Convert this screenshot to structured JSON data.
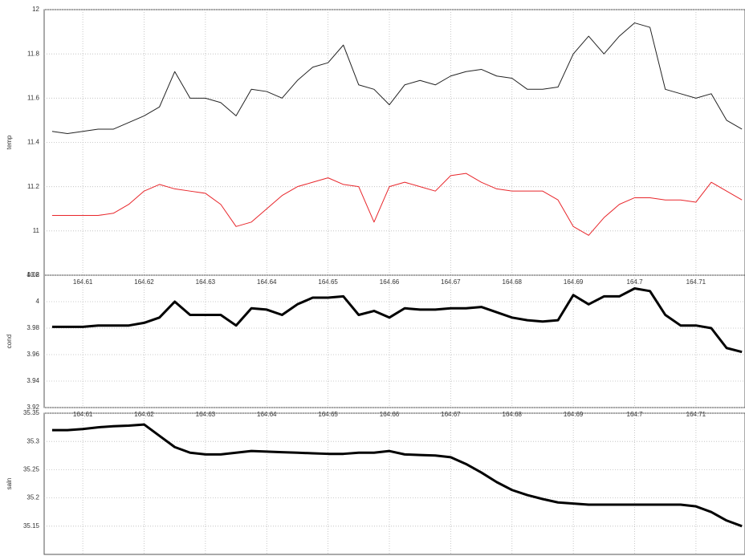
{
  "chart_data": [
    {
      "type": "line",
      "ylabel": "temp",
      "x": [
        164.605,
        164.6075,
        164.61,
        164.6125,
        164.615,
        164.6175,
        164.62,
        164.6225,
        164.625,
        164.6275,
        164.63,
        164.6325,
        164.635,
        164.6375,
        164.64,
        164.6425,
        164.645,
        164.6475,
        164.65,
        164.6525,
        164.655,
        164.6575,
        164.66,
        164.6625,
        164.665,
        164.6675,
        164.67,
        164.6725,
        164.675,
        164.6775,
        164.68,
        164.6825,
        164.685,
        164.6875,
        164.69,
        164.6925,
        164.695,
        164.6975,
        164.7,
        164.7025,
        164.705,
        164.7075,
        164.71,
        164.7125,
        164.715,
        164.7175
      ],
      "series": [
        {
          "color": "#222222",
          "values": [
            11.45,
            11.44,
            11.45,
            11.46,
            11.46,
            11.49,
            11.52,
            11.56,
            11.72,
            11.6,
            11.6,
            11.58,
            11.52,
            11.64,
            11.63,
            11.6,
            11.68,
            11.74,
            11.76,
            11.84,
            11.66,
            11.64,
            11.57,
            11.66,
            11.68,
            11.66,
            11.7,
            11.72,
            11.73,
            11.7,
            11.69,
            11.64,
            11.64,
            11.65,
            11.8,
            11.88,
            11.8,
            11.88,
            11.94,
            11.92,
            11.64,
            11.62,
            11.6,
            11.62,
            11.5,
            11.46
          ]
        },
        {
          "color": "#e8262b",
          "values": [
            11.07,
            11.07,
            11.07,
            11.07,
            11.08,
            11.12,
            11.18,
            11.21,
            11.19,
            11.18,
            11.17,
            11.12,
            11.02,
            11.04,
            11.1,
            11.16,
            11.2,
            11.22,
            11.24,
            11.21,
            11.2,
            11.04,
            11.2,
            11.22,
            11.2,
            11.18,
            11.25,
            11.26,
            11.22,
            11.19,
            11.18,
            11.18,
            11.18,
            11.14,
            11.02,
            10.98,
            11.06,
            11.12,
            11.15,
            11.15,
            11.14,
            11.14,
            11.13,
            11.22,
            11.18,
            11.14
          ]
        }
      ],
      "xlim": [
        164.6037,
        164.718
      ],
      "xticks": [
        164.61,
        164.62,
        164.63,
        164.64,
        164.65,
        164.66,
        164.67,
        164.68,
        164.69,
        164.7,
        164.71
      ],
      "ylim": [
        10.8,
        12
      ],
      "yticks": [
        10.8,
        11,
        11.2,
        11.4,
        11.6,
        11.8,
        12
      ],
      "grid": true
    },
    {
      "type": "line",
      "ylabel": "cond",
      "x": [
        164.605,
        164.6075,
        164.61,
        164.6125,
        164.615,
        164.6175,
        164.62,
        164.6225,
        164.625,
        164.6275,
        164.63,
        164.6325,
        164.635,
        164.6375,
        164.64,
        164.6425,
        164.645,
        164.6475,
        164.65,
        164.6525,
        164.655,
        164.6575,
        164.66,
        164.6625,
        164.665,
        164.6675,
        164.67,
        164.6725,
        164.675,
        164.6775,
        164.68,
        164.6825,
        164.685,
        164.6875,
        164.69,
        164.6925,
        164.695,
        164.6975,
        164.7,
        164.7025,
        164.705,
        164.7075,
        164.71,
        164.7125,
        164.715,
        164.7175
      ],
      "series": [
        {
          "color": "#000000",
          "values": [
            3.981,
            3.981,
            3.981,
            3.982,
            3.982,
            3.982,
            3.984,
            3.988,
            4.0,
            3.99,
            3.99,
            3.99,
            3.982,
            3.995,
            3.994,
            3.99,
            3.998,
            4.003,
            4.003,
            4.004,
            3.99,
            3.993,
            3.988,
            3.995,
            3.994,
            3.994,
            3.995,
            3.995,
            3.996,
            3.992,
            3.988,
            3.986,
            3.985,
            3.986,
            4.005,
            3.998,
            4.004,
            4.004,
            4.01,
            4.008,
            3.99,
            3.982,
            3.982,
            3.98,
            3.965,
            3.962
          ]
        }
      ],
      "xlim": [
        164.6037,
        164.718
      ],
      "xticks": [
        164.61,
        164.62,
        164.63,
        164.64,
        164.65,
        164.66,
        164.67,
        164.68,
        164.69,
        164.7,
        164.71
      ],
      "ylim": [
        3.92,
        4.02
      ],
      "yticks": [
        3.92,
        3.94,
        3.96,
        3.98,
        4,
        4.02
      ],
      "grid": true
    },
    {
      "type": "line",
      "ylabel": "saln",
      "x": [
        164.605,
        164.6075,
        164.61,
        164.6125,
        164.615,
        164.6175,
        164.62,
        164.6225,
        164.625,
        164.6275,
        164.63,
        164.6325,
        164.635,
        164.6375,
        164.64,
        164.6425,
        164.645,
        164.6475,
        164.65,
        164.6525,
        164.655,
        164.6575,
        164.66,
        164.6625,
        164.665,
        164.6675,
        164.67,
        164.6725,
        164.675,
        164.6775,
        164.68,
        164.6825,
        164.685,
        164.6875,
        164.69,
        164.6925,
        164.695,
        164.6975,
        164.7,
        164.7025,
        164.705,
        164.7075,
        164.71,
        164.7125,
        164.715,
        164.7175
      ],
      "series": [
        {
          "color": "#000000",
          "values": [
            35.32,
            35.32,
            35.322,
            35.325,
            35.327,
            35.328,
            35.33,
            35.31,
            35.29,
            35.28,
            35.277,
            35.277,
            35.28,
            35.283,
            35.282,
            35.281,
            35.28,
            35.279,
            35.278,
            35.278,
            35.28,
            35.28,
            35.283,
            35.277,
            35.276,
            35.275,
            35.272,
            35.26,
            35.245,
            35.228,
            35.214,
            35.205,
            35.198,
            35.192,
            35.19,
            35.188,
            35.188,
            35.188,
            35.188,
            35.188,
            35.188,
            35.188,
            35.185,
            35.175,
            35.16,
            35.15
          ]
        }
      ],
      "xlim": [
        164.6037,
        164.718
      ],
      "xticks": [
        164.61,
        164.62,
        164.63,
        164.64,
        164.65,
        164.66,
        164.67,
        164.68,
        164.69,
        164.7,
        164.71
      ],
      "ylim": [
        35.1,
        35.35
      ],
      "yticks": [
        35.15,
        35.2,
        35.25,
        35.3,
        35.35
      ],
      "grid": true
    }
  ]
}
